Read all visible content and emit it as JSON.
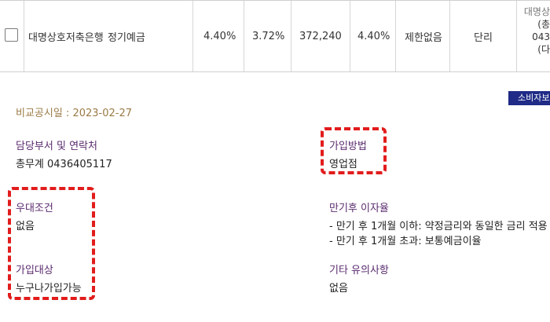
{
  "product_row": {
    "bank": "대명상호저축은행",
    "product": "정기예금",
    "rate_pre_tax": "4.40%",
    "rate_after_tax": "3.72%",
    "interest_amount": "372,240",
    "max_rate": "4.40%",
    "limit": "제한없음",
    "interest_type": "단리",
    "overflow_lines": [
      "대명상",
      "(총",
      "043",
      "(다"
    ]
  },
  "badge": "소비자보",
  "disclosure_date": "비교공시일 : 2023-02-27",
  "details": {
    "contact_label": "담당부서 및 연락처",
    "contact_value": "총무계 0436405117",
    "join_method_label": "가입방법",
    "join_method_value": "영업점",
    "preferential_label": "우대조건",
    "preferential_value": "없음",
    "maturity_interest_label": "만기후 이자율",
    "maturity_interest_lines": [
      "- 만기 후 1개월 이하: 약정금리와 동일한 금리 적용",
      "- 만기 후 1개월 초과: 보통예금이율"
    ],
    "eligibility_label": "가입대상",
    "eligibility_value": "누구나가입가능",
    "other_notes_label": "기타 유의사항",
    "other_notes_value": "없음"
  },
  "highlight_color": "#e21c1c"
}
